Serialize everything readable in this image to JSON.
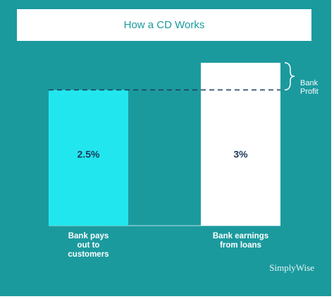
{
  "chart_data": {
    "type": "bar",
    "title": "How a CD Works",
    "categories": [
      "Bank pays out to customers",
      "Bank earnings from loans"
    ],
    "values": [
      2.5,
      3
    ],
    "value_labels": [
      "2.5%",
      "3%"
    ],
    "colors": [
      "#22e6ee",
      "#ffffff"
    ],
    "annotation": "Bank Profit",
    "brand": "SimplyWise"
  }
}
